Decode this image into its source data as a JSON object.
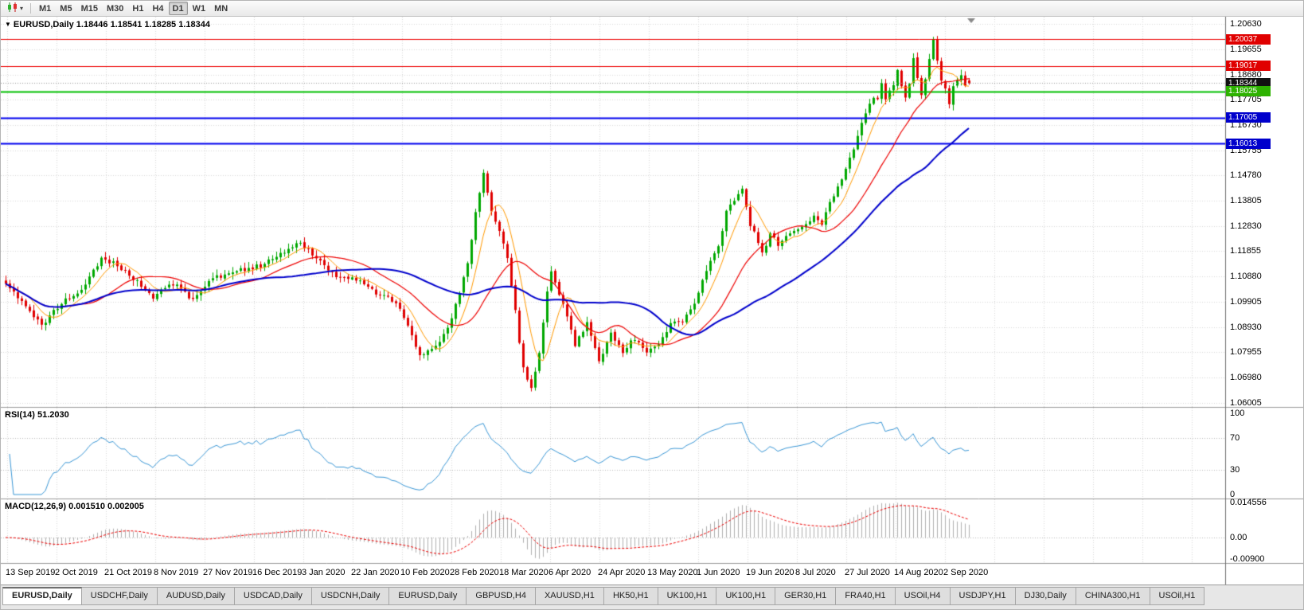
{
  "window": {
    "app": "MetaTrader chart",
    "symbol": "EURUSD",
    "period": "Daily"
  },
  "toolbar": {
    "chart_type_icon": "candlestick-chart-icon",
    "dropdown_caret": "▾",
    "timeframes": [
      "M1",
      "M5",
      "M15",
      "M30",
      "H1",
      "H4",
      "D1",
      "W1",
      "MN"
    ],
    "active_timeframe": "D1"
  },
  "chart": {
    "collapse_marker": "▼",
    "ohlc_text": "EURUSD,Daily 1.18446 1.18541 1.18285 1.18344",
    "price_axis_labels": [
      "1.20630",
      "1.19655",
      "1.18680",
      "1.17705",
      "1.16730",
      "1.15755",
      "1.14780",
      "1.13805",
      "1.12830",
      "1.11855",
      "1.10880",
      "1.09905",
      "1.08930",
      "1.07955",
      "1.06980",
      "1.06005"
    ],
    "price_tags": [
      {
        "text": "1.20037",
        "price": 1.20037,
        "bg": "#e00000",
        "fg": "#ffffff",
        "name": "resistance-tag"
      },
      {
        "text": "1.19017",
        "price": 1.19017,
        "bg": "#e00000",
        "fg": "#ffffff",
        "name": "resistance-tag"
      },
      {
        "text": "1.18344",
        "price": 1.18344,
        "bg": "#111111",
        "fg": "#ffffff",
        "name": "current-price-tag"
      },
      {
        "text": "1.18025",
        "price": 1.18025,
        "bg": "#2db200",
        "fg": "#ffffff",
        "name": "pivot-tag"
      },
      {
        "text": "1.17005",
        "price": 1.17005,
        "bg": "#0000cc",
        "fg": "#ffffff",
        "name": "support-tag"
      },
      {
        "text": "1.16013",
        "price": 1.16013,
        "bg": "#0000cc",
        "fg": "#ffffff",
        "name": "support-tag"
      }
    ],
    "time_axis_labels": [
      "13 Sep 2019",
      "2 Oct 2019",
      "21 Oct 2019",
      "8 Nov 2019",
      "27 Nov 2019",
      "16 Dec 2019",
      "3 Jan 2020",
      "22 Jan 2020",
      "10 Feb 2020",
      "28 Feb 2020",
      "18 Mar 2020",
      "6 Apr 2020",
      "24 Apr 2020",
      "13 May 2020",
      "1 Jun 2020",
      "19 Jun 2020",
      "8 Jul 2020",
      "27 Jul 2020",
      "14 Aug 2020",
      "2 Sep 2020"
    ]
  },
  "rsi": {
    "text": "RSI(14) 51.2030",
    "axis_labels": [
      "100",
      "70",
      "30",
      "0"
    ],
    "axis_values": [
      100,
      70,
      30,
      0
    ],
    "level_lines": [
      70,
      30
    ],
    "line_color": "#3a97d6"
  },
  "macd": {
    "text": "MACD(12,26,9) 0.001510 0.002005",
    "axis_labels": [
      "0.014556",
      "0.00",
      "-0.00900"
    ],
    "axis_values": [
      0.014556,
      0,
      -0.009
    ],
    "bar_color": "#b0b0b0",
    "signal_color": "#ee0000"
  },
  "tabs": {
    "active_index": 0,
    "items": [
      "EURUSD,Daily",
      "USDCHF,Daily",
      "AUDUSD,Daily",
      "USDCAD,Daily",
      "USDCNH,Daily",
      "EURUSD,Daily",
      "GBPUSD,H4",
      "XAUUSD,H1",
      "HK50,H1",
      "UK100,H1",
      "UK100,H1",
      "GER30,H1",
      "FRA40,H1",
      "USOil,H4",
      "USDJPY,H1",
      "DJ30,Daily",
      "CHINA300,H1",
      "USOil,H1"
    ]
  },
  "chart_data": {
    "type": "candlestick",
    "symbol": "EURUSD",
    "timeframe": "Daily",
    "title": "EURUSD,Daily",
    "last_ohlc": {
      "open": 1.18446,
      "high": 1.18541,
      "low": 1.18285,
      "close": 1.18344
    },
    "bars": 243,
    "ylim": [
      1.0584,
      1.2091
    ],
    "x_range": [
      "13 Sep 2019",
      "2 Sep 2020"
    ],
    "up_color": "#00a800",
    "down_color": "#e00000",
    "price_path": [
      [
        0,
        1.106
      ],
      [
        4,
        1.0995
      ],
      [
        9,
        1.09
      ],
      [
        14,
        1.0985
      ],
      [
        19,
        1.104
      ],
      [
        24,
        1.116
      ],
      [
        28,
        1.113
      ],
      [
        33,
        1.107
      ],
      [
        37,
        1.101
      ],
      [
        42,
        1.106
      ],
      [
        47,
        1.1
      ],
      [
        52,
        1.108
      ],
      [
        58,
        1.111
      ],
      [
        64,
        1.113
      ],
      [
        70,
        1.118
      ],
      [
        74,
        1.122
      ],
      [
        78,
        1.116
      ],
      [
        83,
        1.109
      ],
      [
        88,
        1.108
      ],
      [
        93,
        1.102
      ],
      [
        98,
        1.099
      ],
      [
        101,
        1.089
      ],
      [
        104,
        1.079
      ],
      [
        107,
        1.0805
      ],
      [
        110,
        1.086
      ],
      [
        112,
        1.093
      ],
      [
        114,
        1.103
      ],
      [
        116,
        1.114
      ],
      [
        118,
        1.133
      ],
      [
        120,
        1.149
      ],
      [
        122,
        1.134
      ],
      [
        124,
        1.127
      ],
      [
        126,
        1.116
      ],
      [
        128,
        1.095
      ],
      [
        130,
        1.073
      ],
      [
        132,
        1.066
      ],
      [
        134,
        1.079
      ],
      [
        136,
        1.103
      ],
      [
        137,
        1.111
      ],
      [
        139,
        1.102
      ],
      [
        141,
        1.093
      ],
      [
        143,
        1.082
      ],
      [
        146,
        1.091
      ],
      [
        149,
        1.076
      ],
      [
        152,
        1.087
      ],
      [
        155,
        1.08
      ],
      [
        158,
        1.085
      ],
      [
        161,
        1.079
      ],
      [
        164,
        1.083
      ],
      [
        167,
        1.09
      ],
      [
        170,
        1.092
      ],
      [
        173,
        1.099
      ],
      [
        176,
        1.111
      ],
      [
        179,
        1.12
      ],
      [
        181,
        1.134
      ],
      [
        183,
        1.138
      ],
      [
        185,
        1.142
      ],
      [
        187,
        1.129
      ],
      [
        190,
        1.118
      ],
      [
        192,
        1.125
      ],
      [
        194,
        1.121
      ],
      [
        197,
        1.125
      ],
      [
        200,
        1.128
      ],
      [
        203,
        1.132
      ],
      [
        205,
        1.129
      ],
      [
        207,
        1.138
      ],
      [
        209,
        1.143
      ],
      [
        211,
        1.15
      ],
      [
        213,
        1.158
      ],
      [
        215,
        1.168
      ],
      [
        217,
        1.176
      ],
      [
        219,
        1.178
      ],
      [
        220,
        1.184
      ],
      [
        221,
        1.178
      ],
      [
        223,
        1.183
      ],
      [
        224,
        1.188
      ],
      [
        225,
        1.182
      ],
      [
        226,
        1.178
      ],
      [
        227,
        1.184
      ],
      [
        228,
        1.193
      ],
      [
        229,
        1.185
      ],
      [
        230,
        1.178
      ],
      [
        231,
        1.185
      ],
      [
        232,
        1.192
      ],
      [
        233,
        1.1995
      ],
      [
        234,
        1.192
      ],
      [
        235,
        1.185
      ],
      [
        236,
        1.181
      ],
      [
        237,
        1.176
      ],
      [
        238,
        1.1815
      ],
      [
        239,
        1.185
      ],
      [
        240,
        1.187
      ],
      [
        241,
        1.182
      ],
      [
        242,
        1.18344
      ]
    ],
    "moving_averages": [
      {
        "period": 7,
        "color": "#ff9900",
        "width": 1
      },
      {
        "period": 20,
        "color": "#ee0000",
        "width": 1.2
      },
      {
        "period": 45,
        "color": "#0000cc",
        "width": 2
      }
    ],
    "horizontal_lines": [
      {
        "price": 1.20037,
        "color": "#ee0000",
        "width": 1,
        "type": "resistance"
      },
      {
        "price": 1.19017,
        "color": "#ee0000",
        "width": 1,
        "type": "resistance"
      },
      {
        "price": 1.18025,
        "color": "#00c000",
        "width": 2,
        "type": "pivot"
      },
      {
        "price": 1.17005,
        "color": "#0000ee",
        "width": 2,
        "type": "support"
      },
      {
        "price": 1.16013,
        "color": "#0000ee",
        "width": 2,
        "type": "support"
      }
    ],
    "indicators": [
      {
        "name": "RSI",
        "period": 14,
        "value": 51.203
      },
      {
        "name": "MACD",
        "fast": 12,
        "slow": 26,
        "signal": 9,
        "value": 0.00151,
        "signal_value": 0.002005
      }
    ]
  }
}
